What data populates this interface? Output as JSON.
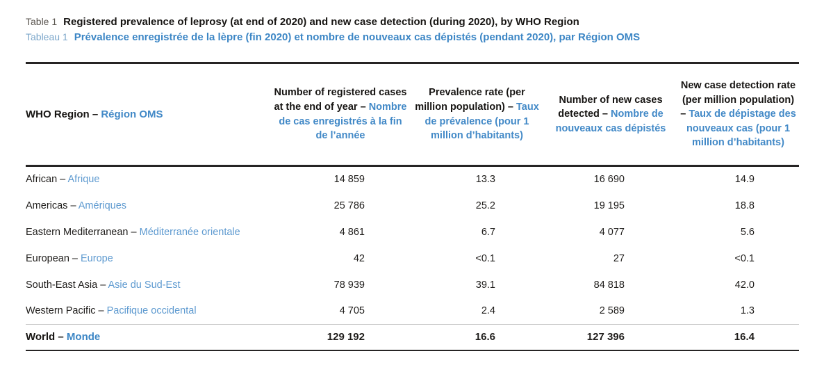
{
  "colors": {
    "accent_blue_bold": "#3c86c5",
    "accent_blue_light": "#5e9ad0",
    "header_blue": "#4289c7",
    "label_gray": "#5b5650",
    "label_light_blue": "#7ba6ca",
    "text_black": "#1f1d1b"
  },
  "title": {
    "en_label": "Table 1",
    "en_text": "Registered prevalence of leprosy (at end of 2020) and new case detection (during 2020), by WHO Region",
    "fr_label": "Tableau 1",
    "fr_text": "Prévalence enregistrée de la lèpre (fin 2020) et nombre de nouveaux cas dépistés (pendant 2020), par Région OMS"
  },
  "table": {
    "columns": [
      {
        "en": "WHO Region – ",
        "fr": "Région OMS"
      },
      {
        "en": "Number of registered cases at the end of year – ",
        "fr": "Nombre de cas enregistrés à la fin de l’année"
      },
      {
        "en": "Prevalence rate (per million population) – ",
        "fr": "Taux de prévalence (pour 1 million d’habitants)"
      },
      {
        "en": "Number of new cases detected – ",
        "fr": "Nombre de nouveaux cas dépistés"
      },
      {
        "en": "New case detection rate (per million population) – ",
        "fr": "Taux de dépistage des nouveaux cas (pour 1 million d’habitants)"
      }
    ],
    "rows": [
      {
        "region_en": "African – ",
        "region_fr": "Afrique",
        "registered": "14 859",
        "prevalence": "13.3",
        "new_cases": "16 690",
        "detection_rate": "14.9"
      },
      {
        "region_en": "Americas – ",
        "region_fr": "Amériques",
        "registered": "25 786",
        "prevalence": "25.2",
        "new_cases": "19 195",
        "detection_rate": "18.8"
      },
      {
        "region_en": "Eastern Mediterranean – ",
        "region_fr": "Méditerranée orientale",
        "registered": "4 861",
        "prevalence": "6.7",
        "new_cases": "4 077",
        "detection_rate": "5.6"
      },
      {
        "region_en": "European – ",
        "region_fr": "Europe",
        "registered": "42",
        "prevalence": "<0.1",
        "new_cases": "27",
        "detection_rate": "<0.1"
      },
      {
        "region_en": "South-East Asia – ",
        "region_fr": "Asie du Sud-Est",
        "registered": "78 939",
        "prevalence": "39.1",
        "new_cases": "84 818",
        "detection_rate": "42.0"
      },
      {
        "region_en": "Western Pacific – ",
        "region_fr": "Pacifique occidental",
        "registered": "4 705",
        "prevalence": "2.4",
        "new_cases": "2 589",
        "detection_rate": "1.3"
      }
    ],
    "total": {
      "region_en": "World – ",
      "region_fr": "Monde",
      "registered": "129 192",
      "prevalence": "16.6",
      "new_cases": "127 396",
      "detection_rate": "16.4"
    }
  }
}
